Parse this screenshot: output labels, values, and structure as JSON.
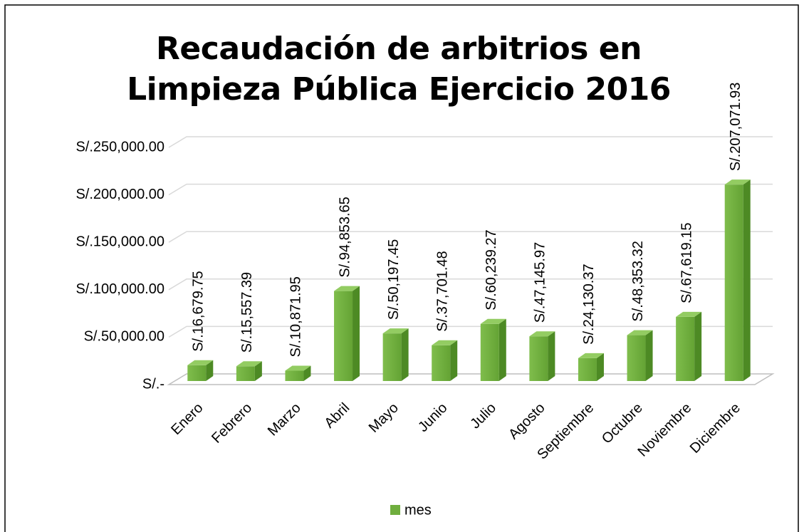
{
  "chart_data": {
    "type": "bar3d",
    "title": "Recaudación de arbitrios en Limpieza Pública Ejercicio 2016",
    "categories": [
      "Enero",
      "Febrero",
      "Marzo",
      "Abril",
      "Mayo",
      "Junio",
      "Julio",
      "Agosto",
      "Septiembre",
      "Octubre",
      "Noviembre",
      "Diciembre"
    ],
    "series": [
      {
        "name": "mes",
        "color": "#6fae3e",
        "values": [
          16679.75,
          15557.39,
          10871.95,
          94853.65,
          50197.45,
          37701.48,
          60239.27,
          47145.97,
          24130.37,
          48353.32,
          67619.15,
          207071.93
        ],
        "value_labels": [
          "S/.16,679.75",
          "S/.15,557.39",
          "S/.10,871.95",
          "S/.94,853.65",
          "S/.50,197.45",
          "S/.37,701.48",
          "S/.60,239.27",
          "S/.47,145.97",
          "S/.24,130.37",
          "S/.48,353.32",
          "S/.67,619.15",
          "S/.207,071.93"
        ]
      }
    ],
    "ylim": [
      0,
      250000
    ],
    "yticks": [
      {
        "value": 0,
        "label": "S/.-"
      },
      {
        "value": 50000,
        "label": "S/.50,000.00"
      },
      {
        "value": 100000,
        "label": "S/.100,000.00"
      },
      {
        "value": 150000,
        "label": "S/.150,000.00"
      },
      {
        "value": 200000,
        "label": "S/.200,000.00"
      },
      {
        "value": 250000,
        "label": "S/.250,000.00"
      }
    ],
    "grid": true,
    "legend": "bottom"
  }
}
